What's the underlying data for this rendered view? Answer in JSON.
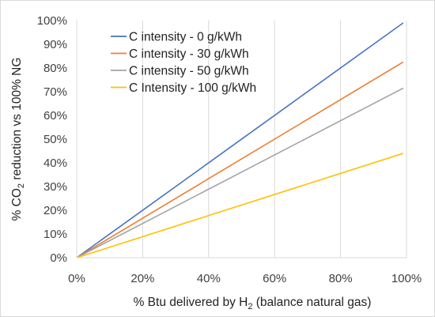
{
  "chart_data": {
    "type": "line",
    "title": "",
    "xlabel": {
      "prefix": "% Btu delivered by H",
      "subscript": "2",
      "suffix": " (balance natural gas)"
    },
    "ylabel": {
      "prefix": "% CO",
      "subscript": "2",
      "suffix": " reduction vs 100% NG"
    },
    "x_ticks": [
      "0%",
      "20%",
      "40%",
      "60%",
      "80%",
      "100%"
    ],
    "y_ticks": [
      "0%",
      "10%",
      "20%",
      "30%",
      "40%",
      "50%",
      "60%",
      "70%",
      "80%",
      "90%",
      "100%"
    ],
    "xlim": [
      0,
      100
    ],
    "ylim": [
      0,
      100
    ],
    "grid": {
      "vertical": true,
      "horizontal": false
    },
    "legend_position": "top-left",
    "series": [
      {
        "name": "C intensity - 0 g/kWh",
        "color": "#4472c4",
        "x": [
          0,
          99
        ],
        "y": [
          0,
          99
        ]
      },
      {
        "name": "C intensity - 30 g/kWh",
        "color": "#ed7d31",
        "x": [
          0,
          99
        ],
        "y": [
          0,
          82.5
        ]
      },
      {
        "name": "C intensity - 50 g/kWh",
        "color": "#a5a5a5",
        "x": [
          0,
          99
        ],
        "y": [
          0,
          71.5
        ]
      },
      {
        "name": "C Intensity - 100 g/kWh",
        "color": "#ffc000",
        "x": [
          0,
          99
        ],
        "y": [
          0,
          44
        ]
      }
    ]
  }
}
